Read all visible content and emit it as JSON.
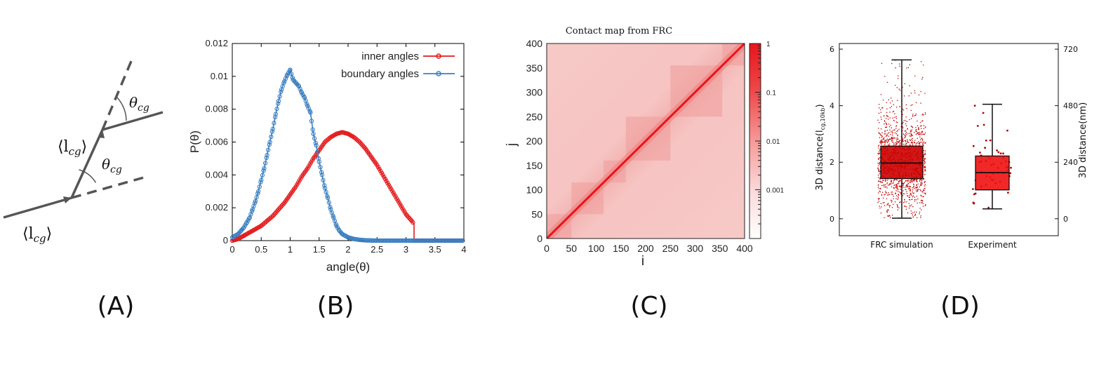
{
  "panel_labels": [
    "(A)",
    "(B)",
    "(C)",
    "(D)"
  ],
  "panel_a": {
    "length_label": "⟨l",
    "length_sub": "cg",
    "length_close": "⟩",
    "angle_label": "θ",
    "angle_sub": "cg"
  },
  "chart_data": [
    {
      "type": "line",
      "xlabel": "angle(θ)",
      "ylabel": "P(θ)",
      "xlim": [
        0,
        4
      ],
      "ylim": [
        0,
        0.012
      ],
      "xticks": [
        "0",
        "0.5",
        "1",
        "1.5",
        "2",
        "2.5",
        "3",
        "3.5",
        "4"
      ],
      "yticks": [
        "0",
        "0.002",
        "0.004",
        "0.006",
        "0.008",
        "0.01",
        "0.012"
      ],
      "legend": "top-right",
      "series": [
        {
          "name": "inner angles",
          "color": "#e31a1c",
          "x": [
            0,
            0.1,
            0.2,
            0.3,
            0.4,
            0.5,
            0.6,
            0.7,
            0.8,
            0.9,
            1.0,
            1.1,
            1.2,
            1.3,
            1.4,
            1.5,
            1.6,
            1.7,
            1.8,
            1.9,
            2.0,
            2.1,
            2.2,
            2.3,
            2.4,
            2.5,
            2.6,
            2.7,
            2.8,
            2.9,
            3.0,
            3.1,
            3.14,
            3.14,
            4.0
          ],
          "y": [
            0,
            0.0001,
            0.0003,
            0.0005,
            0.0007,
            0.0009,
            0.0012,
            0.0015,
            0.0019,
            0.0023,
            0.0028,
            0.0033,
            0.0039,
            0.0044,
            0.005,
            0.0055,
            0.006,
            0.0063,
            0.0065,
            0.0066,
            0.0065,
            0.0063,
            0.006,
            0.0056,
            0.0051,
            0.0046,
            0.004,
            0.0034,
            0.0028,
            0.0022,
            0.0016,
            0.0012,
            0.001,
            0,
            0
          ]
        },
        {
          "name": "boundary angles",
          "color": "#3a7fc1",
          "x": [
            0,
            0.05,
            0.1,
            0.15,
            0.2,
            0.25,
            0.3,
            0.35,
            0.4,
            0.45,
            0.5,
            0.55,
            0.6,
            0.65,
            0.7,
            0.75,
            0.8,
            0.85,
            0.9,
            0.95,
            1.0,
            1.05,
            1.1,
            1.15,
            1.2,
            1.25,
            1.3,
            1.35,
            1.4,
            1.45,
            1.5,
            1.55,
            1.6,
            1.65,
            1.7,
            1.75,
            1.8,
            1.85,
            1.9,
            1.95,
            2.0,
            2.1,
            2.2,
            2.3,
            2.5,
            3.0,
            4.0
          ],
          "y": [
            0.0002,
            0.0003,
            0.0004,
            0.0006,
            0.0008,
            0.0011,
            0.0014,
            0.0019,
            0.0024,
            0.003,
            0.0037,
            0.0044,
            0.0052,
            0.006,
            0.0068,
            0.0077,
            0.0085,
            0.0092,
            0.0097,
            0.0101,
            0.0104,
            0.0098,
            0.0096,
            0.0094,
            0.009,
            0.0087,
            0.0082,
            0.0078,
            0.0065,
            0.0058,
            0.0048,
            0.004,
            0.0032,
            0.0026,
            0.0019,
            0.0014,
            0.0009,
            0.0006,
            0.0004,
            0.0003,
            0.0002,
            0.0001,
            5e-05,
            2e-05,
            0,
            0,
            0
          ]
        }
      ]
    },
    {
      "type": "heatmap",
      "title": "Contact map from FRC",
      "xlabel": "i",
      "ylabel": "j",
      "xlim": [
        0,
        400
      ],
      "ylim": [
        0,
        400
      ],
      "xticks": [
        "0",
        "50",
        "100",
        "150",
        "200",
        "250",
        "300",
        "350",
        "400"
      ],
      "yticks": [
        "0",
        "50",
        "100",
        "150",
        "200",
        "250",
        "300",
        "350",
        "400"
      ],
      "colorbar_ticks": [
        "1",
        "0.1",
        "0.01",
        "0.001"
      ],
      "colorbar_scale": "log",
      "domain_boundaries": [
        0,
        50,
        115,
        160,
        250,
        355,
        400
      ],
      "color": "#e8141c"
    },
    {
      "type": "box",
      "ylabel": "3D distance(l",
      "ylabel_sub": "cg,10kb",
      "ylabel_close": ")",
      "ylabel_right": "3D distance(nm)",
      "categories": [
        "FRC simulation",
        "Experiment"
      ],
      "ylim": [
        -0.6,
        6.2
      ],
      "yticks": [
        "0",
        "2",
        "4",
        "6"
      ],
      "yticks_right": [
        "0",
        "240",
        "480",
        "720"
      ],
      "boxes": [
        {
          "min": 0.02,
          "q1": 1.42,
          "median": 1.97,
          "q3": 2.57,
          "max": 5.62,
          "color": "#cc0000"
        },
        {
          "min": 0.35,
          "q1": 1.02,
          "median": 1.63,
          "q3": 2.22,
          "max": 4.05,
          "color": "#ee1111"
        }
      ]
    }
  ]
}
